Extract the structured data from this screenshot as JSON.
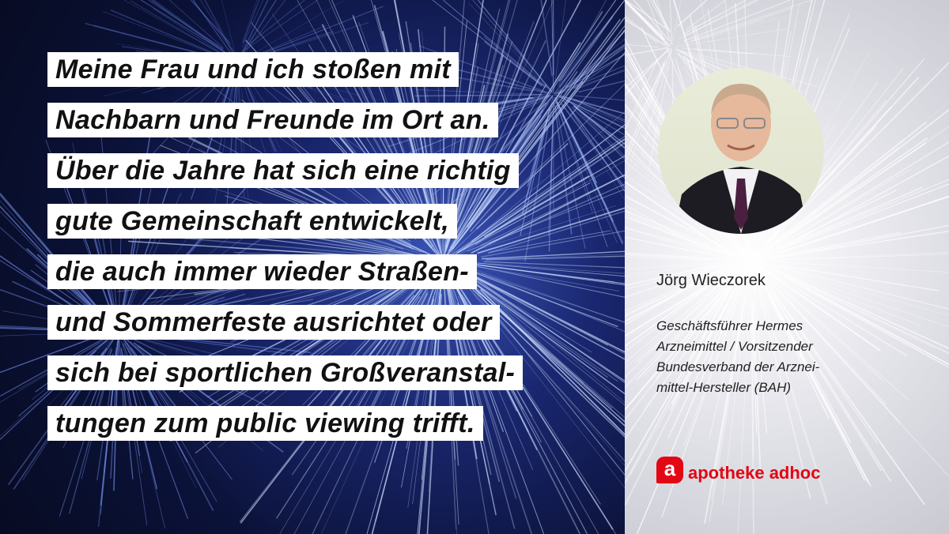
{
  "quote": {
    "lines": [
      "Meine Frau und ich stoßen mit",
      "Nachbarn und Freunde im Ort an.",
      "Über die Jahre hat sich eine richtig",
      "gute Gemeinschaft entwickelt,",
      "die auch immer wieder Straßen-",
      "und Sommerfeste ausrichtet oder",
      "sich bei sportlichen Großveranstal-",
      "tungen zum public viewing trifft."
    ]
  },
  "person": {
    "name": "Jörg Wieczorek",
    "role_lines": [
      "Geschäftsführer Hermes",
      "Arzneimittel / Vorsitzender",
      "Bundesverband der Arznei-",
      "mittel-Hersteller (BAH)"
    ]
  },
  "logo": {
    "mark": "a",
    "text": "apotheke adhoc",
    "color": "#e30613"
  },
  "colors": {
    "background_left": "#0b1238",
    "background_right": "#e8e8ee"
  }
}
